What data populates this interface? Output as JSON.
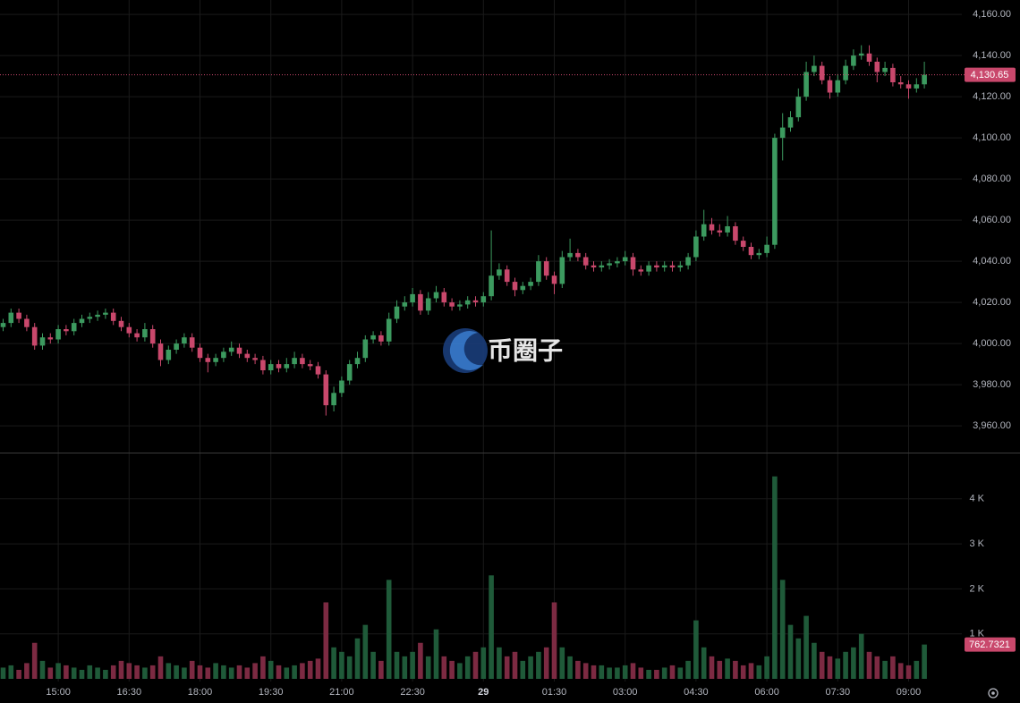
{
  "chart_data": {
    "type": "candlestick",
    "x": [
      "13:50",
      "14:00",
      "14:10",
      "14:20",
      "14:30",
      "14:40",
      "14:50",
      "15:00",
      "15:10",
      "15:20",
      "15:30",
      "15:40",
      "15:50",
      "16:00",
      "16:10",
      "16:20",
      "16:30",
      "16:40",
      "16:50",
      "17:00",
      "17:10",
      "17:20",
      "17:30",
      "17:40",
      "17:50",
      "18:00",
      "18:10",
      "18:20",
      "18:30",
      "18:40",
      "18:50",
      "19:00",
      "19:10",
      "19:20",
      "19:30",
      "19:40",
      "19:50",
      "20:00",
      "20:10",
      "20:20",
      "20:30",
      "20:40",
      "20:50",
      "21:00",
      "21:10",
      "21:20",
      "21:30",
      "21:40",
      "21:50",
      "22:00",
      "22:10",
      "22:20",
      "22:30",
      "22:40",
      "22:50",
      "23:00",
      "23:10",
      "23:20",
      "23:30",
      "23:40",
      "23:50",
      "00:00",
      "00:10",
      "00:20",
      "00:30",
      "00:40",
      "00:50",
      "01:00",
      "01:10",
      "01:20",
      "01:30",
      "01:40",
      "01:50",
      "02:00",
      "02:10",
      "02:20",
      "02:30",
      "02:40",
      "02:50",
      "03:00",
      "03:10",
      "03:20",
      "03:30",
      "03:40",
      "03:50",
      "04:00",
      "04:10",
      "04:20",
      "04:30",
      "04:40",
      "04:50",
      "05:00",
      "05:10",
      "05:20",
      "05:30",
      "05:40",
      "05:50",
      "06:00",
      "06:10",
      "06:20",
      "06:30",
      "06:40",
      "06:50",
      "07:00",
      "07:10",
      "07:20",
      "07:30",
      "07:40",
      "07:50",
      "08:00",
      "08:10",
      "08:20",
      "08:30",
      "08:40",
      "08:50",
      "09:00",
      "09:10",
      "09:20"
    ],
    "open": [
      4008,
      4010,
      4015,
      4012,
      4008,
      3999,
      4003,
      4002,
      4007,
      4006,
      4010,
      4012,
      4013,
      4014,
      4015,
      4011,
      4008,
      4005,
      4003,
      4007,
      4000,
      3992,
      3997,
      4000,
      4003,
      3998,
      3993,
      3991,
      3993,
      3996,
      3998,
      3995,
      3993,
      3992,
      3987,
      3990,
      3988,
      3990,
      3993,
      3990,
      3989,
      3985,
      3970,
      3976,
      3982,
      3990,
      3993,
      4002,
      4004,
      4001,
      4012,
      4018,
      4020,
      4024,
      4016,
      4022,
      4025,
      4020,
      4018,
      4019,
      4021,
      4020,
      4023,
      4033,
      4036,
      4030,
      4026,
      4028,
      4030,
      4040,
      4033,
      4029,
      4042,
      4044,
      4042,
      4038,
      4037,
      4038,
      4039,
      4040,
      4042,
      4036,
      4035,
      4038,
      4037,
      4038,
      4037,
      4038,
      4042,
      4052,
      4058,
      4055,
      4054,
      4057,
      4050,
      4047,
      4043,
      4044,
      4048,
      4100,
      4105,
      4110,
      4120,
      4132,
      4135,
      4128,
      4122,
      4128,
      4135,
      4140,
      4141,
      4137,
      4132,
      4134,
      4127,
      4126,
      4124,
      4126
    ],
    "high": [
      4012,
      4017,
      4017,
      4014,
      4010,
      4005,
      4005,
      4009,
      4009,
      4012,
      4014,
      4015,
      4016,
      4017,
      4017,
      4013,
      4010,
      4007,
      4010,
      4009,
      4002,
      3999,
      4002,
      4005,
      4005,
      4000,
      3995,
      3995,
      3998,
      4001,
      4000,
      3997,
      3995,
      3994,
      3992,
      3992,
      3993,
      3996,
      3995,
      3992,
      3991,
      3987,
      3979,
      3984,
      3992,
      3996,
      4004,
      4006,
      4006,
      4015,
      4021,
      4023,
      4027,
      4026,
      4025,
      4028,
      4027,
      4022,
      4021,
      4023,
      4023,
      4025,
      4055,
      4039,
      4038,
      4032,
      4030,
      4032,
      4043,
      4042,
      4035,
      4045,
      4051,
      4046,
      4044,
      4040,
      4040,
      4041,
      4042,
      4045,
      4044,
      4038,
      4040,
      4040,
      4040,
      4040,
      4040,
      4044,
      4055,
      4065,
      4061,
      4058,
      4062,
      4059,
      4052,
      4049,
      4046,
      4052,
      4102,
      4112,
      4113,
      4124,
      4137,
      4140,
      4137,
      4130,
      4131,
      4138,
      4143,
      4145,
      4145,
      4139,
      4137,
      4136,
      4130,
      4128,
      4129,
      4137
    ],
    "low": [
      4006,
      4008,
      4010,
      4006,
      3997,
      3997,
      4000,
      4000,
      4004,
      4004,
      4008,
      4010,
      4011,
      4012,
      4009,
      4006,
      4003,
      4001,
      4001,
      3998,
      3989,
      3990,
      3995,
      3998,
      3996,
      3991,
      3986,
      3989,
      3991,
      3994,
      3993,
      3991,
      3990,
      3985,
      3985,
      3986,
      3986,
      3988,
      3988,
      3987,
      3983,
      3965,
      3967,
      3974,
      3980,
      3988,
      3991,
      4000,
      3999,
      3999,
      4010,
      4016,
      4018,
      4014,
      4014,
      4020,
      4018,
      4016,
      4016,
      4017,
      4018,
      4018,
      4021,
      4031,
      4028,
      4023,
      4024,
      4026,
      4028,
      4031,
      4024,
      4027,
      4040,
      4040,
      4036,
      4035,
      4035,
      4036,
      4037,
      4038,
      4033,
      4033,
      4033,
      4035,
      4035,
      4035,
      4035,
      4036,
      4040,
      4050,
      4053,
      4052,
      4052,
      4048,
      4045,
      4041,
      4041,
      4042,
      4046,
      4089,
      4103,
      4108,
      4118,
      4130,
      4126,
      4119,
      4120,
      4126,
      4133,
      4138,
      4135,
      4127,
      4130,
      4125,
      4124,
      4119,
      4122,
      4124
    ],
    "close": [
      4010,
      4015,
      4012,
      4008,
      3999,
      4003,
      4002,
      4007,
      4006,
      4010,
      4012,
      4013,
      4014,
      4015,
      4011,
      4008,
      4005,
      4003,
      4007,
      4000,
      3992,
      3997,
      4000,
      4003,
      3998,
      3993,
      3991,
      3993,
      3996,
      3998,
      3995,
      3993,
      3992,
      3987,
      3990,
      3988,
      3990,
      3993,
      3990,
      3989,
      3985,
      3970,
      3976,
      3982,
      3990,
      3993,
      4002,
      4004,
      4001,
      4012,
      4018,
      4020,
      4024,
      4016,
      4022,
      4025,
      4020,
      4018,
      4019,
      4021,
      4020,
      4023,
      4033,
      4036,
      4030,
      4026,
      4028,
      4030,
      4040,
      4033,
      4029,
      4042,
      4044,
      4042,
      4038,
      4037,
      4038,
      4039,
      4040,
      4042,
      4036,
      4035,
      4038,
      4037,
      4038,
      4037,
      4038,
      4042,
      4052,
      4058,
      4055,
      4054,
      4057,
      4050,
      4047,
      4043,
      4044,
      4048,
      4100,
      4105,
      4110,
      4120,
      4132,
      4135,
      4128,
      4122,
      4128,
      4135,
      4140,
      4141,
      4137,
      4132,
      4134,
      4127,
      4126,
      4124,
      4126,
      4130.65
    ],
    "volume": [
      250,
      300,
      200,
      350,
      800,
      400,
      250,
      350,
      300,
      250,
      200,
      300,
      250,
      200,
      300,
      400,
      350,
      300,
      250,
      300,
      500,
      350,
      300,
      250,
      400,
      300,
      250,
      350,
      300,
      250,
      300,
      250,
      350,
      500,
      400,
      300,
      250,
      300,
      350,
      400,
      450,
      1700,
      700,
      600,
      500,
      900,
      1200,
      600,
      400,
      2200,
      600,
      500,
      600,
      800,
      500,
      1100,
      500,
      400,
      350,
      500,
      600,
      700,
      2300,
      700,
      500,
      600,
      400,
      500,
      600,
      700,
      1700,
      700,
      500,
      400,
      350,
      300,
      300,
      250,
      250,
      300,
      350,
      250,
      200,
      200,
      250,
      300,
      250,
      400,
      1300,
      700,
      500,
      400,
      450,
      400,
      300,
      350,
      300,
      500,
      4500,
      2200,
      1200,
      900,
      1400,
      800,
      600,
      500,
      450,
      600,
      700,
      1000,
      600,
      500,
      400,
      500,
      350,
      300,
      400,
      762.7321
    ],
    "up_color": "#3c9a5f",
    "down_color": "#c9486c",
    "volume_up_color": "#1f5a39",
    "volume_down_color": "#7c2a42",
    "ylim": [
      3947,
      4167
    ],
    "yticks": [
      {
        "value": 3960,
        "label": "3,960.00"
      },
      {
        "value": 3980,
        "label": "3,980.00"
      },
      {
        "value": 4000,
        "label": "4,000.00"
      },
      {
        "value": 4020,
        "label": "4,020.00"
      },
      {
        "value": 4040,
        "label": "4,040.00"
      },
      {
        "value": 4060,
        "label": "4,060.00"
      },
      {
        "value": 4080,
        "label": "4,080.00"
      },
      {
        "value": 4100,
        "label": "4,100.00"
      },
      {
        "value": 4120,
        "label": "4,120.00"
      },
      {
        "value": 4140,
        "label": "4,140.00"
      },
      {
        "value": 4160,
        "label": "4,160.00"
      }
    ],
    "volume_ylim": [
      0,
      4990
    ],
    "volume_yticks": [
      {
        "value": 1000,
        "label": "1 K"
      },
      {
        "value": 2000,
        "label": "2 K"
      },
      {
        "value": 3000,
        "label": "3 K"
      },
      {
        "value": 4000,
        "label": "4 K"
      }
    ],
    "xticks": [
      "15:00",
      "16:30",
      "18:00",
      "19:30",
      "21:00",
      "22:30",
      {
        "value": "00:00",
        "label": "29"
      },
      "01:30",
      "03:00",
      "04:30",
      "06:00",
      "07:30",
      "09:00"
    ],
    "last_price": {
      "value": 4130.65,
      "label": "4,130.65"
    },
    "grid": true,
    "watermark": "币圈子"
  }
}
